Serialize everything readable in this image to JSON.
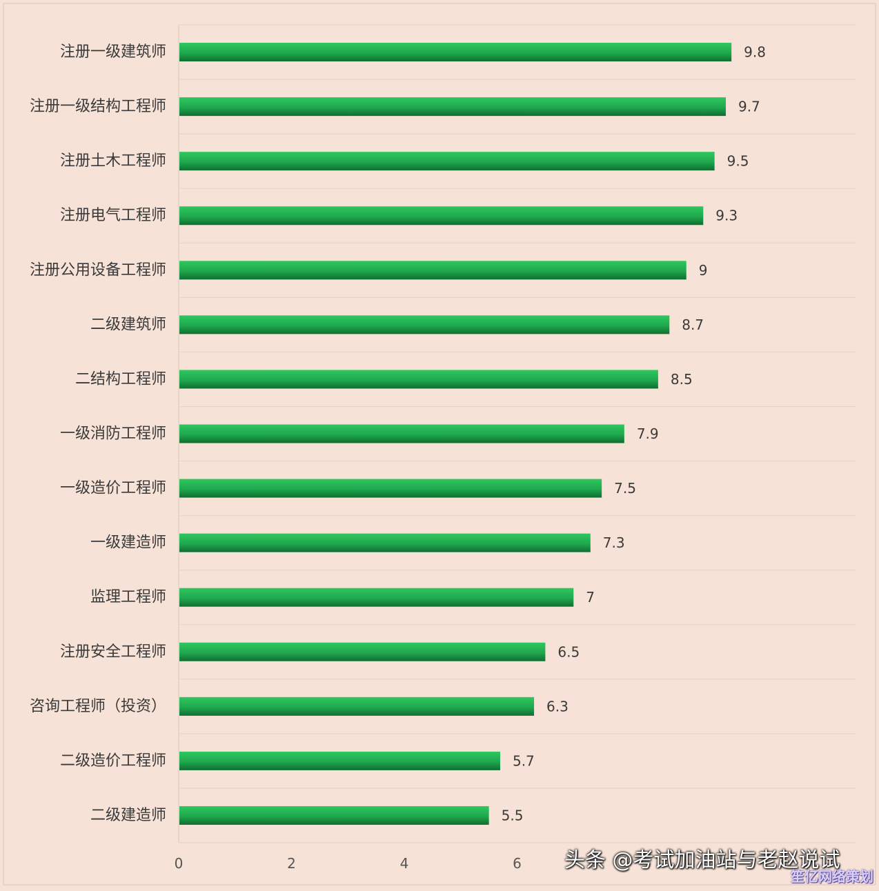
{
  "chart_data": {
    "type": "bar",
    "orientation": "horizontal",
    "categories": [
      "注册一级建筑师",
      "注册一级结构工程师",
      "注册土木工程师",
      "注册电气工程师",
      "注册公用设备工程师",
      "二级建筑师",
      "二结构工程师",
      "一级消防工程师",
      "一级造价工程师",
      "一级建造师",
      "监理工程师",
      "注册安全工程师",
      "咨询工程师（投资）",
      "二级造价工程师",
      "二级建造师"
    ],
    "values": [
      9.8,
      9.7,
      9.5,
      9.3,
      9,
      8.7,
      8.5,
      7.9,
      7.5,
      7.3,
      7,
      6.5,
      6.3,
      5.7,
      5.5
    ],
    "value_labels": [
      "9.8",
      "9.7",
      "9.5",
      "9.3",
      "9",
      "8.7",
      "8.5",
      "7.9",
      "7.5",
      "7.3",
      "7",
      "6.5",
      "6.3",
      "5.7",
      "5.5"
    ],
    "x_ticks": [
      "0",
      "2",
      "4",
      "6"
    ],
    "xlim": [
      0,
      12
    ],
    "title": "",
    "xlabel": "",
    "ylabel": "",
    "grid": "horizontal",
    "bar_color": "#1fa84e",
    "bar_color_dark": "#0f6e30",
    "background": "#f6e2d6"
  },
  "watermark": {
    "main": "头条 @考试加油站与老赵说试",
    "corner": "笙亿网络策划"
  }
}
